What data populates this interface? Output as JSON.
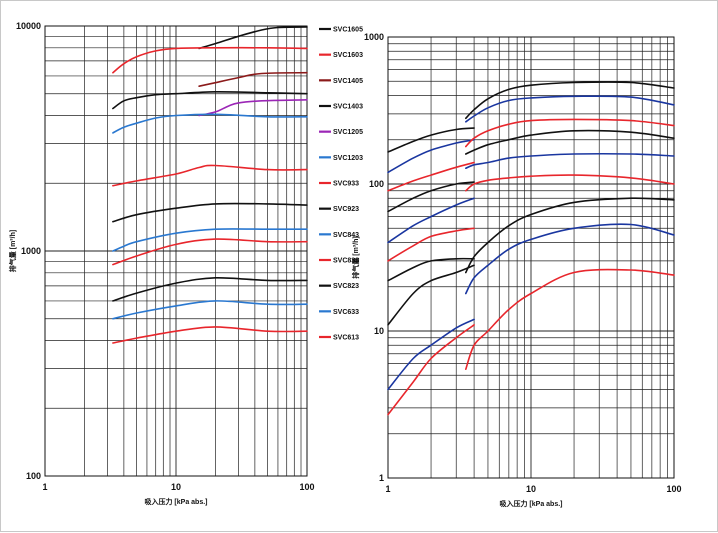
{
  "chart_data": [
    {
      "type": "line",
      "x_scale": "log",
      "y_scale": "log",
      "xlim": [
        1,
        100
      ],
      "ylim": [
        100,
        10000
      ],
      "xticks": [
        "1",
        "10",
        "100"
      ],
      "yticks": [
        "100",
        "1000",
        "10000"
      ],
      "xlabel": "吸入压力 [kPa abs.]",
      "ylabel": "排气量 [m³/h]",
      "grid": true,
      "legend_position": "right",
      "series": [
        {
          "name": "SVC1605",
          "color": "#111111",
          "points": [
            [
              15,
              7950
            ],
            [
              20,
              8350
            ],
            [
              30,
              9000
            ],
            [
              45,
              9600
            ],
            [
              60,
              9850
            ],
            [
              100,
              9900
            ]
          ]
        },
        {
          "name": "SVC1603",
          "color": "#e8262c",
          "points": [
            [
              3.3,
              6200
            ],
            [
              4,
              6800
            ],
            [
              5,
              7300
            ],
            [
              7,
              7750
            ],
            [
              10,
              7950
            ],
            [
              20,
              8000
            ],
            [
              50,
              8000
            ],
            [
              100,
              7950
            ]
          ]
        },
        {
          "name": "SVC1405",
          "color": "#8b1a1a",
          "points": [
            [
              15,
              5400
            ],
            [
              20,
              5600
            ],
            [
              30,
              5900
            ],
            [
              45,
              6150
            ],
            [
              100,
              6200
            ]
          ]
        },
        {
          "name": "SVC1403",
          "color": "#111111",
          "points": [
            [
              3.3,
              4300
            ],
            [
              4,
              4650
            ],
            [
              5,
              4800
            ],
            [
              7,
              4950
            ],
            [
              10,
              5000
            ],
            [
              20,
              5100
            ],
            [
              50,
              5050
            ],
            [
              100,
              5000
            ]
          ]
        },
        {
          "name": "SVC1205",
          "color": "#9b26b6",
          "points": [
            [
              15,
              4000
            ],
            [
              20,
              4150
            ],
            [
              25,
              4400
            ],
            [
              30,
              4550
            ],
            [
              45,
              4650
            ],
            [
              100,
              4700
            ]
          ]
        },
        {
          "name": "SVC1203",
          "color": "#2a78d0",
          "points": [
            [
              3.3,
              3350
            ],
            [
              4,
              3550
            ],
            [
              5,
              3700
            ],
            [
              7,
              3900
            ],
            [
              10,
              4000
            ],
            [
              20,
              4050
            ],
            [
              50,
              3950
            ],
            [
              100,
              3950
            ]
          ]
        },
        {
          "name": "SVC933",
          "color": "#e8262c",
          "points": [
            [
              3.3,
              1950
            ],
            [
              5,
              2050
            ],
            [
              10,
              2200
            ],
            [
              15,
              2350
            ],
            [
              20,
              2400
            ],
            [
              50,
              2300
            ],
            [
              100,
              2300
            ]
          ]
        },
        {
          "name": "SVC923",
          "color": "#111111",
          "points": [
            [
              3.3,
              1350
            ],
            [
              5,
              1450
            ],
            [
              10,
              1550
            ],
            [
              20,
              1620
            ],
            [
              50,
              1620
            ],
            [
              100,
              1600
            ]
          ]
        },
        {
          "name": "SVC843",
          "color": "#2a78d0",
          "points": [
            [
              3.3,
              1000
            ],
            [
              4,
              1050
            ],
            [
              5,
              1100
            ],
            [
              10,
              1200
            ],
            [
              20,
              1250
            ],
            [
              50,
              1250
            ],
            [
              100,
              1250
            ]
          ]
        },
        {
          "name": "SVC833",
          "color": "#e8262c",
          "points": [
            [
              3.3,
              870
            ],
            [
              5,
              950
            ],
            [
              10,
              1070
            ],
            [
              20,
              1130
            ],
            [
              50,
              1100
            ],
            [
              100,
              1100
            ]
          ]
        },
        {
          "name": "SVC823",
          "color": "#111111",
          "points": [
            [
              3.3,
              600
            ],
            [
              5,
              650
            ],
            [
              10,
              720
            ],
            [
              20,
              760
            ],
            [
              50,
              740
            ],
            [
              100,
              740
            ]
          ]
        },
        {
          "name": "SVC633",
          "color": "#2a78d0",
          "points": [
            [
              3.3,
              500
            ],
            [
              5,
              530
            ],
            [
              10,
              570
            ],
            [
              20,
              600
            ],
            [
              50,
              580
            ],
            [
              100,
              580
            ]
          ]
        },
        {
          "name": "SVC613",
          "color": "#e8262c",
          "points": [
            [
              3.3,
              390
            ],
            [
              5,
              410
            ],
            [
              10,
              440
            ],
            [
              20,
              460
            ],
            [
              50,
              440
            ],
            [
              100,
              440
            ]
          ]
        }
      ]
    },
    {
      "type": "line",
      "x_scale": "log",
      "y_scale": "log",
      "xlim": [
        1,
        100
      ],
      "ylim": [
        1,
        1000
      ],
      "xticks": [
        "1",
        "10",
        "100"
      ],
      "yticks": [
        "1",
        "10",
        "100",
        "1000"
      ],
      "xlabel": "吸入压力 [kPa abs.]",
      "ylabel": "排气量 [m³/h]",
      "grid": true,
      "series": [
        {
          "color": "#111111",
          "points": [
            [
              1,
              165
            ],
            [
              1.5,
              195
            ],
            [
              2,
              215
            ],
            [
              3,
              235
            ],
            [
              4,
              240
            ]
          ]
        },
        {
          "color": "#111111",
          "points": [
            [
              3.5,
              280
            ],
            [
              4,
              320
            ],
            [
              5,
              380
            ],
            [
              7,
              440
            ],
            [
              10,
              470
            ],
            [
              20,
              490
            ],
            [
              50,
              490
            ],
            [
              100,
              450
            ]
          ]
        },
        {
          "color": "#1a36a0",
          "points": [
            [
              1,
              120
            ],
            [
              1.5,
              150
            ],
            [
              2,
              170
            ],
            [
              3,
              190
            ],
            [
              4,
              200
            ]
          ]
        },
        {
          "color": "#1a36a0",
          "points": [
            [
              3.5,
              265
            ],
            [
              4,
              290
            ],
            [
              5,
              330
            ],
            [
              7,
              370
            ],
            [
              10,
              385
            ],
            [
              20,
              395
            ],
            [
              50,
              390
            ],
            [
              100,
              345
            ]
          ]
        },
        {
          "color": "#e8262c",
          "points": [
            [
              1,
              90
            ],
            [
              1.5,
              105
            ],
            [
              2,
              115
            ],
            [
              3,
              130
            ],
            [
              4,
              140
            ]
          ]
        },
        {
          "color": "#e8262c",
          "points": [
            [
              3.5,
              180
            ],
            [
              4,
              205
            ],
            [
              5,
              230
            ],
            [
              7,
              255
            ],
            [
              10,
              270
            ],
            [
              20,
              275
            ],
            [
              50,
              270
            ],
            [
              100,
              250
            ]
          ]
        },
        {
          "color": "#111111",
          "points": [
            [
              3.5,
              160
            ],
            [
              4,
              170
            ],
            [
              5,
              185
            ],
            [
              7,
              200
            ],
            [
              10,
              215
            ],
            [
              20,
              230
            ],
            [
              50,
              225
            ],
            [
              100,
              205
            ]
          ]
        },
        {
          "color": "#111111",
          "points": [
            [
              1,
              65
            ],
            [
              1.5,
              80
            ],
            [
              2,
              90
            ],
            [
              3,
              100
            ],
            [
              4,
              103
            ]
          ]
        },
        {
          "color": "#1a36a0",
          "points": [
            [
              3.5,
              128
            ],
            [
              4,
              135
            ],
            [
              5,
              140
            ],
            [
              7,
              150
            ],
            [
              10,
              155
            ],
            [
              20,
              160
            ],
            [
              50,
              160
            ],
            [
              100,
              155
            ]
          ]
        },
        {
          "color": "#1a36a0",
          "points": [
            [
              1,
              40
            ],
            [
              1.5,
              52
            ],
            [
              2,
              60
            ],
            [
              3,
              72
            ],
            [
              4,
              80
            ]
          ]
        },
        {
          "color": "#e8262c",
          "points": [
            [
              3.5,
              90
            ],
            [
              4,
              100
            ],
            [
              5,
              106
            ],
            [
              7,
              110
            ],
            [
              10,
              113
            ],
            [
              20,
              115
            ],
            [
              50,
              110
            ],
            [
              100,
              100
            ]
          ]
        },
        {
          "color": "#e8262c",
          "points": [
            [
              1,
              30
            ],
            [
              1.5,
              38
            ],
            [
              2,
              44
            ],
            [
              3,
              48
            ],
            [
              4,
              50
            ]
          ]
        },
        {
          "color": "#111111",
          "points": [
            [
              1,
              22
            ],
            [
              1.5,
              27
            ],
            [
              2,
              30
            ],
            [
              3,
              31
            ],
            [
              4,
              31
            ]
          ]
        },
        {
          "color": "#111111",
          "points": [
            [
              3.5,
              25
            ],
            [
              4,
              32
            ],
            [
              5,
              40
            ],
            [
              7,
              52
            ],
            [
              10,
              62
            ],
            [
              20,
              75
            ],
            [
              50,
              80
            ],
            [
              100,
              78
            ]
          ]
        },
        {
          "color": "#1a36a0",
          "points": [
            [
              3.5,
              18
            ],
            [
              4,
              23
            ],
            [
              5,
              28
            ],
            [
              7,
              36
            ],
            [
              10,
              42
            ],
            [
              20,
              50
            ],
            [
              50,
              53
            ],
            [
              100,
              45
            ]
          ]
        },
        {
          "color": "#e8262c",
          "points": [
            [
              3.5,
              5.5
            ],
            [
              4,
              8
            ],
            [
              5,
              10
            ],
            [
              7,
              14
            ],
            [
              10,
              18
            ],
            [
              20,
              25
            ],
            [
              50,
              26
            ],
            [
              100,
              24
            ]
          ]
        },
        {
          "color": "#111111",
          "points": [
            [
              1,
              11
            ],
            [
              1.5,
              18
            ],
            [
              2,
              22
            ],
            [
              3,
              25
            ],
            [
              4,
              28
            ]
          ]
        },
        {
          "color": "#1a36a0",
          "points": [
            [
              1,
              4
            ],
            [
              1.5,
              6.5
            ],
            [
              2,
              8
            ],
            [
              3,
              10.5
            ],
            [
              4,
              12
            ]
          ]
        },
        {
          "color": "#e8262c",
          "points": [
            [
              1,
              2.7
            ],
            [
              1.5,
              4.5
            ],
            [
              2,
              6.5
            ],
            [
              3,
              9
            ],
            [
              4,
              11
            ]
          ]
        }
      ]
    }
  ]
}
